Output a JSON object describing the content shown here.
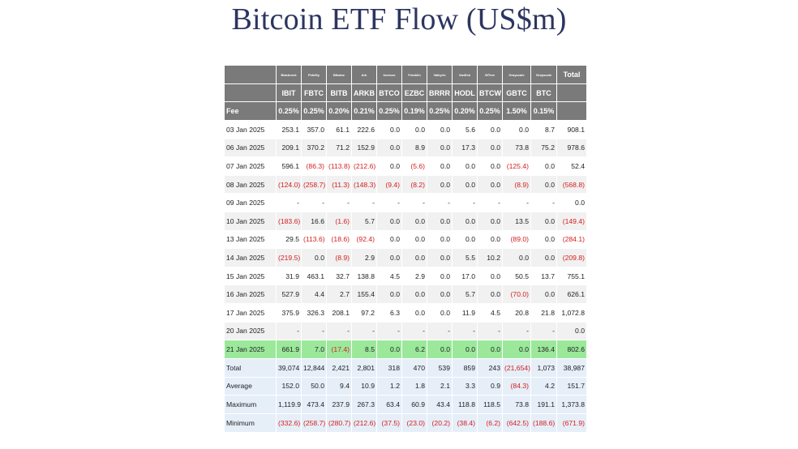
{
  "title": "Bitcoin ETF Flow (US$m)",
  "issuers": [
    "Blackrock",
    "Fidelity",
    "Bitwise",
    "Ark",
    "Invesco",
    "Franklin",
    "Valkyrie",
    "VanEck",
    "WTree",
    "Grayscale",
    "Grayscale"
  ],
  "total_label": "Total",
  "tickers": [
    "IBIT",
    "FBTC",
    "BITB",
    "ARKB",
    "BTCO",
    "EZBC",
    "BRRR",
    "HODL",
    "BTCW",
    "GBTC",
    "BTC"
  ],
  "fee_label": "Fee",
  "fees": [
    "0.25%",
    "0.25%",
    "0.20%",
    "0.21%",
    "0.25%",
    "0.19%",
    "0.25%",
    "0.20%",
    "0.25%",
    "1.50%",
    "0.15%"
  ],
  "rows": [
    {
      "date": "03 Jan 2025",
      "values": [
        "253.1",
        "357.0",
        "61.1",
        "222.6",
        "0.0",
        "0.0",
        "0.0",
        "5.6",
        "0.0",
        "0.0",
        "8.7",
        "908.1"
      ]
    },
    {
      "date": "06 Jan 2025",
      "values": [
        "209.1",
        "370.2",
        "71.2",
        "152.9",
        "0.0",
        "8.9",
        "0.0",
        "17.3",
        "0.0",
        "73.8",
        "75.2",
        "978.6"
      ]
    },
    {
      "date": "07 Jan 2025",
      "values": [
        "596.1",
        "(86.3)",
        "(113.8)",
        "(212.6)",
        "0.0",
        "(5.6)",
        "0.0",
        "0.0",
        "0.0",
        "(125.4)",
        "0.0",
        "52.4"
      ]
    },
    {
      "date": "08 Jan 2025",
      "values": [
        "(124.0)",
        "(258.7)",
        "(11.3)",
        "(148.3)",
        "(9.4)",
        "(8.2)",
        "0.0",
        "0.0",
        "0.0",
        "(8.9)",
        "0.0",
        "(568.8)"
      ]
    },
    {
      "date": "09 Jan 2025",
      "values": [
        "-",
        "-",
        "-",
        "-",
        "-",
        "-",
        "-",
        "-",
        "-",
        "-",
        "-",
        "0.0"
      ]
    },
    {
      "date": "10 Jan 2025",
      "values": [
        "(183.6)",
        "16.6",
        "(1.6)",
        "5.7",
        "0.0",
        "0.0",
        "0.0",
        "0.0",
        "0.0",
        "13.5",
        "0.0",
        "(149.4)"
      ]
    },
    {
      "date": "13 Jan 2025",
      "values": [
        "29.5",
        "(113.6)",
        "(18.6)",
        "(92.4)",
        "0.0",
        "0.0",
        "0.0",
        "0.0",
        "0.0",
        "(89.0)",
        "0.0",
        "(284.1)"
      ]
    },
    {
      "date": "14 Jan 2025",
      "values": [
        "(219.5)",
        "0.0",
        "(8.9)",
        "2.9",
        "0.0",
        "0.0",
        "0.0",
        "5.5",
        "10.2",
        "0.0",
        "0.0",
        "(209.8)"
      ]
    },
    {
      "date": "15 Jan 2025",
      "values": [
        "31.9",
        "463.1",
        "32.7",
        "138.8",
        "4.5",
        "2.9",
        "0.0",
        "17.0",
        "0.0",
        "50.5",
        "13.7",
        "755.1"
      ]
    },
    {
      "date": "16 Jan 2025",
      "values": [
        "527.9",
        "4.4",
        "2.7",
        "155.4",
        "0.0",
        "0.0",
        "0.0",
        "5.7",
        "0.0",
        "(70.0)",
        "0.0",
        "626.1"
      ]
    },
    {
      "date": "17 Jan 2025",
      "values": [
        "375.9",
        "326.3",
        "208.1",
        "97.2",
        "6.3",
        "0.0",
        "0.0",
        "11.9",
        "4.5",
        "20.8",
        "21.8",
        "1,072.8"
      ]
    },
    {
      "date": "20 Jan 2025",
      "values": [
        "-",
        "-",
        "-",
        "-",
        "-",
        "-",
        "-",
        "-",
        "-",
        "-",
        "-",
        "0.0"
      ]
    },
    {
      "date": "21 Jan 2025",
      "values": [
        "661.9",
        "7.0",
        "(17.4)",
        "8.5",
        "0.0",
        "6.2",
        "0.0",
        "0.0",
        "0.0",
        "0.0",
        "136.4",
        "802.6"
      ],
      "highlight": true
    }
  ],
  "summary": [
    {
      "label": "Total",
      "values": [
        "39,074",
        "12,844",
        "2,421",
        "2,801",
        "318",
        "470",
        "539",
        "859",
        "243",
        "(21,654)",
        "1,073",
        "38,987"
      ]
    },
    {
      "label": "Average",
      "values": [
        "152.0",
        "50.0",
        "9.4",
        "10.9",
        "1.2",
        "1.8",
        "2.1",
        "3.3",
        "0.9",
        "(84.3)",
        "4.2",
        "151.7"
      ]
    },
    {
      "label": "Maximum",
      "values": [
        "1,119.9",
        "473.4",
        "237.9",
        "267.3",
        "63.4",
        "60.9",
        "43.4",
        "118.8",
        "118.5",
        "73.8",
        "191.1",
        "1,373.8"
      ]
    },
    {
      "label": "Minimum",
      "values": [
        "(332.6)",
        "(258.7)",
        "(280.7)",
        "(212.6)",
        "(37.5)",
        "(23.0)",
        "(20.2)",
        "(38.4)",
        "(6.2)",
        "(642.5)",
        "(188.6)",
        "(671.9)"
      ]
    }
  ],
  "colors": {
    "header_bg": "#7a7a7a",
    "negative": "#d42020",
    "highlight": "#9be89b",
    "summary_bg": "#e6eef8",
    "title": "#2c3560"
  }
}
